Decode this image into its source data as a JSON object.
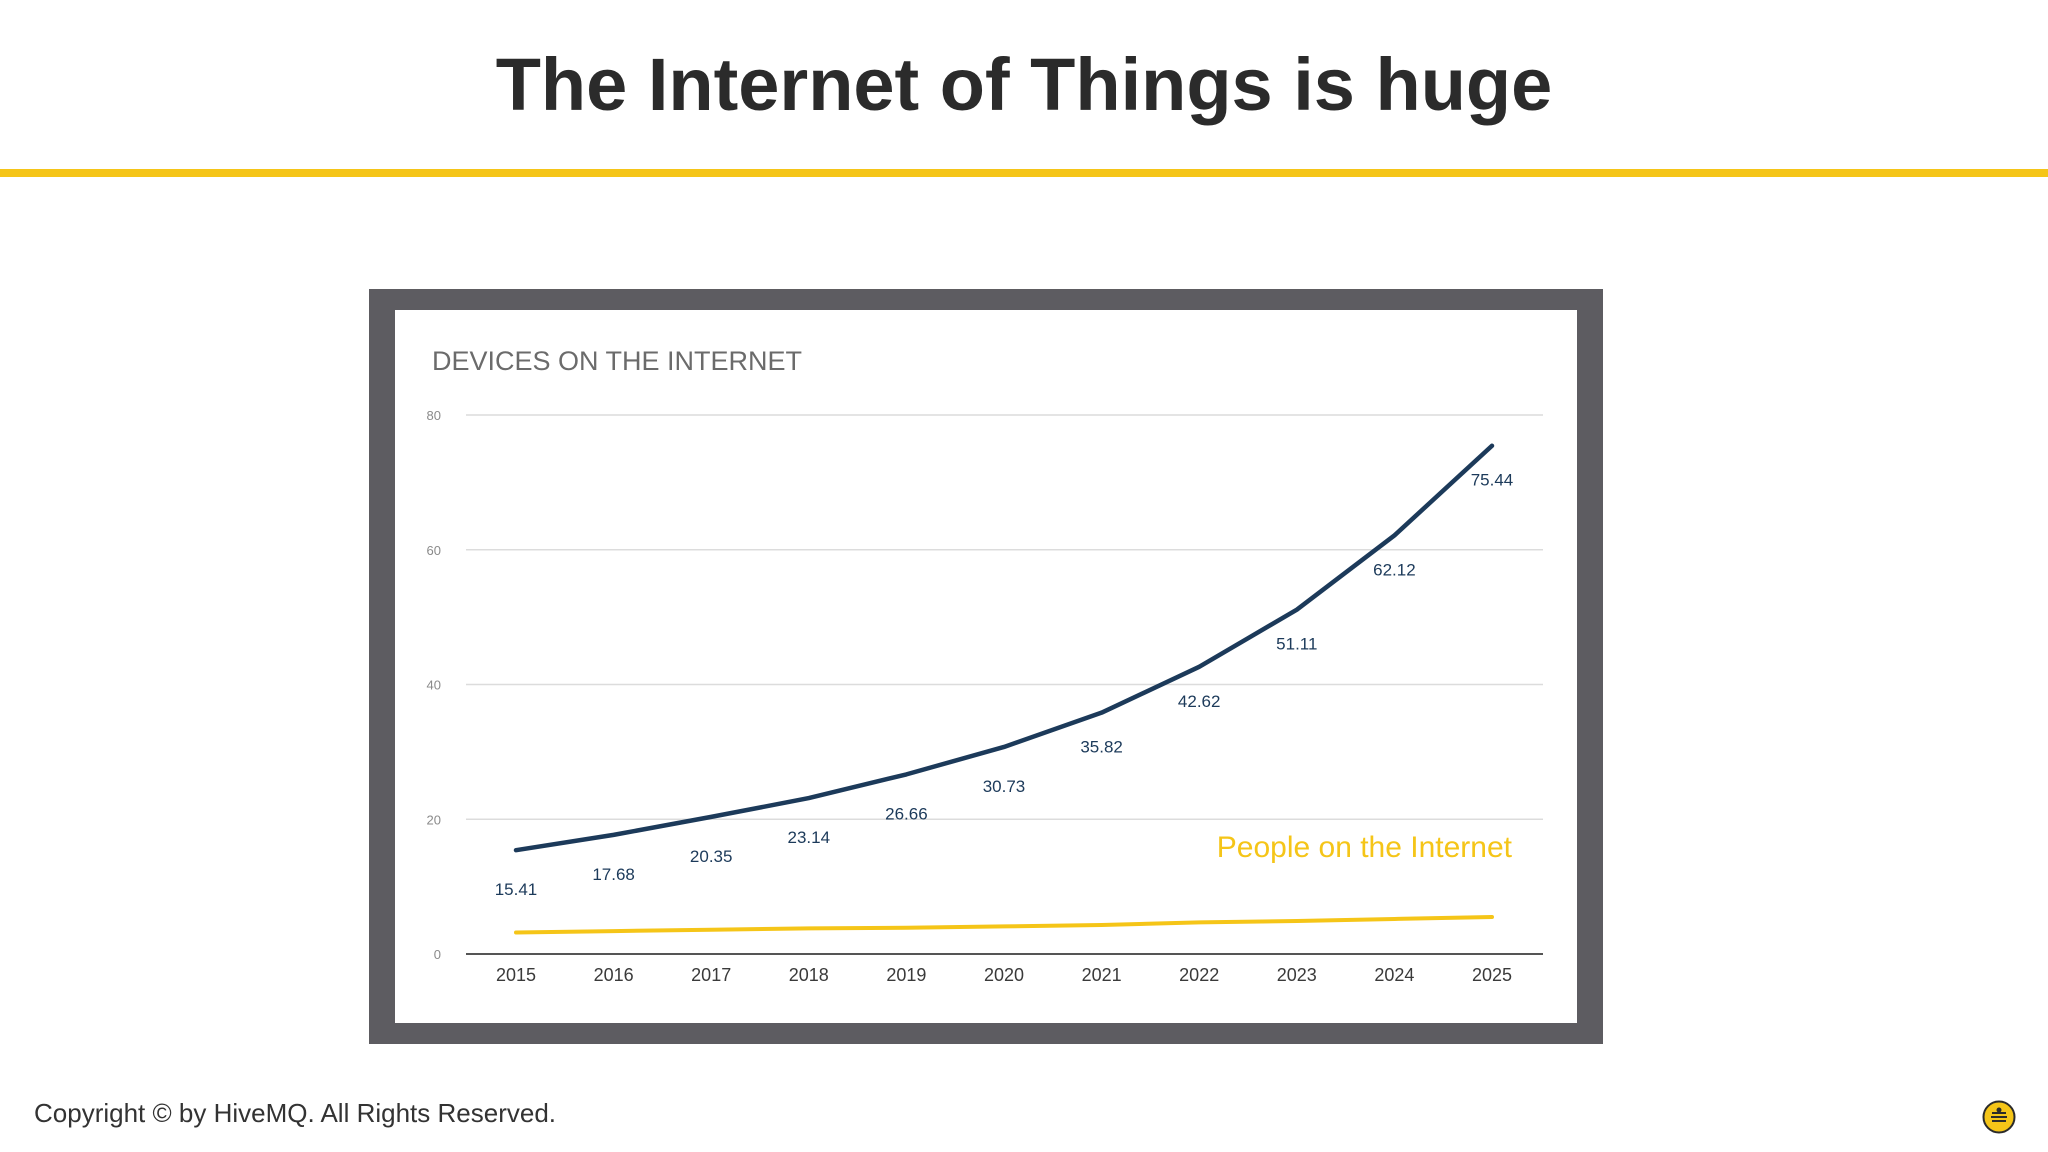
{
  "slide": {
    "title": "The Internet of Things is huge",
    "footer": "Copyright © by HiveMQ. All Rights Reserved.",
    "accent_color": "#f5c518",
    "logo_icon": "hivemq-bee-logo-icon"
  },
  "chart_data": {
    "type": "line",
    "title": "DEVICES ON THE INTERNET",
    "xlabel": "",
    "ylabel": "",
    "categories": [
      "2015",
      "2016",
      "2017",
      "2018",
      "2019",
      "2020",
      "2021",
      "2022",
      "2023",
      "2024",
      "2025"
    ],
    "ylim": [
      0,
      80
    ],
    "yticks": [
      "0",
      "20",
      "40",
      "60",
      "80"
    ],
    "grid": true,
    "series": [
      {
        "values": [
          15.41,
          17.68,
          20.35,
          23.14,
          26.66,
          30.73,
          35.82,
          42.62,
          51.11,
          62.12,
          75.44
        ],
        "labels": [
          "15.41",
          "17.68",
          "20.35",
          "23.14",
          "26.66",
          "30.73",
          "35.82",
          "42.62",
          "51.11",
          "62.12",
          "75.44"
        ],
        "color": "#1c3a5a"
      },
      {
        "name": "People on the Internet",
        "values": [
          3.2,
          3.4,
          3.6,
          3.8,
          3.9,
          4.1,
          4.3,
          4.7,
          4.9,
          5.2,
          5.5
        ],
        "color": "#f5c518"
      }
    ]
  }
}
